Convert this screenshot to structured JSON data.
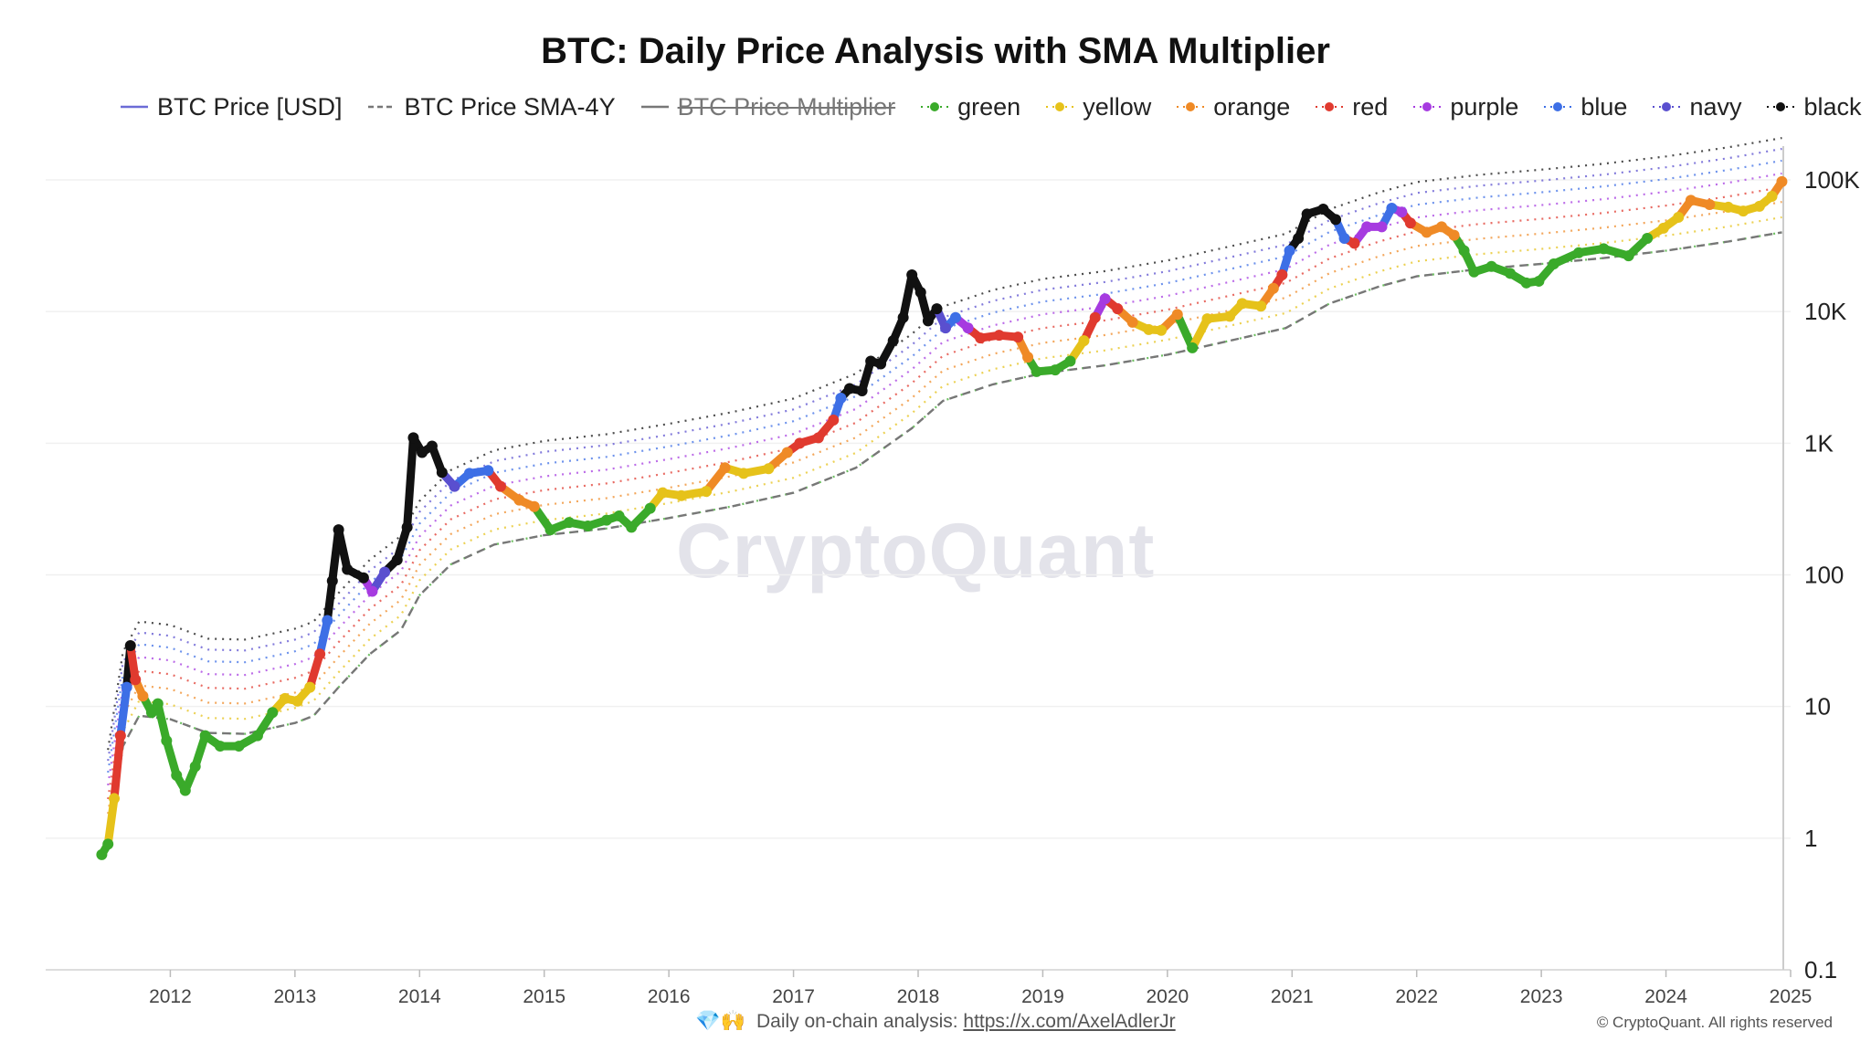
{
  "chart_data": {
    "type": "scatter",
    "title": "BTC: Daily Price Analysis with SMA Multiplier",
    "y_scale": "log",
    "ylim": [
      0.1,
      100000
    ],
    "y_ticks": [
      {
        "value": 0.1,
        "label": "0.1"
      },
      {
        "value": 1,
        "label": "1"
      },
      {
        "value": 10,
        "label": "10"
      },
      {
        "value": 100,
        "label": "100"
      },
      {
        "value": 1000,
        "label": "1K"
      },
      {
        "value": 10000,
        "label": "10K"
      },
      {
        "value": 100000,
        "label": "100K"
      }
    ],
    "x_ticks": [
      "2012",
      "2013",
      "2014",
      "2015",
      "2016",
      "2017",
      "2018",
      "2019",
      "2020",
      "2021",
      "2022",
      "2023",
      "2024",
      "2025"
    ],
    "xlim": [
      2011.0,
      2025.0
    ],
    "legend_position": "top",
    "legend": [
      {
        "label": "BTC Price [USD]",
        "style": "line",
        "color": "#6b6bd6",
        "hidden": false
      },
      {
        "label": "BTC Price SMA-4Y",
        "style": "dashed",
        "color": "#777777",
        "hidden": false
      },
      {
        "label": "BTC Price Multiplier",
        "style": "line",
        "color": "#777777",
        "hidden": true
      },
      {
        "label": "green",
        "style": "marker",
        "color": "#3aaa2a",
        "hidden": false
      },
      {
        "label": "yellow",
        "style": "marker",
        "color": "#e6c21a",
        "hidden": false
      },
      {
        "label": "orange",
        "style": "marker",
        "color": "#ef8a26",
        "hidden": false
      },
      {
        "label": "red",
        "style": "marker",
        "color": "#e03a2f",
        "hidden": false
      },
      {
        "label": "purple",
        "style": "marker",
        "color": "#a63be0",
        "hidden": false
      },
      {
        "label": "blue",
        "style": "marker",
        "color": "#3d6fe6",
        "hidden": false
      },
      {
        "label": "navy",
        "style": "marker",
        "color": "#5a4fcf",
        "hidden": false
      },
      {
        "label": "black",
        "style": "marker",
        "color": "#111111",
        "hidden": false
      }
    ],
    "price_series": [
      {
        "x": 2011.45,
        "y": 0.75,
        "c": "green"
      },
      {
        "x": 2011.5,
        "y": 0.9,
        "c": "green"
      },
      {
        "x": 2011.55,
        "y": 2.0,
        "c": "yellow"
      },
      {
        "x": 2011.6,
        "y": 6.0,
        "c": "red"
      },
      {
        "x": 2011.65,
        "y": 14,
        "c": "blue"
      },
      {
        "x": 2011.68,
        "y": 29,
        "c": "black"
      },
      {
        "x": 2011.72,
        "y": 16,
        "c": "red"
      },
      {
        "x": 2011.78,
        "y": 12,
        "c": "orange"
      },
      {
        "x": 2011.85,
        "y": 9,
        "c": "green"
      },
      {
        "x": 2011.9,
        "y": 10.5,
        "c": "green"
      },
      {
        "x": 2011.97,
        "y": 5.5,
        "c": "green"
      },
      {
        "x": 2012.05,
        "y": 3.0,
        "c": "green"
      },
      {
        "x": 2012.12,
        "y": 2.3,
        "c": "green"
      },
      {
        "x": 2012.2,
        "y": 3.5,
        "c": "green"
      },
      {
        "x": 2012.28,
        "y": 6.0,
        "c": "green"
      },
      {
        "x": 2012.4,
        "y": 5.0,
        "c": "green"
      },
      {
        "x": 2012.55,
        "y": 5.0,
        "c": "green"
      },
      {
        "x": 2012.7,
        "y": 6.0,
        "c": "green"
      },
      {
        "x": 2012.82,
        "y": 9.0,
        "c": "green"
      },
      {
        "x": 2012.92,
        "y": 11.5,
        "c": "yellow"
      },
      {
        "x": 2013.02,
        "y": 11.0,
        "c": "yellow"
      },
      {
        "x": 2013.12,
        "y": 14,
        "c": "yellow"
      },
      {
        "x": 2013.2,
        "y": 25,
        "c": "red"
      },
      {
        "x": 2013.26,
        "y": 45,
        "c": "blue"
      },
      {
        "x": 2013.3,
        "y": 90,
        "c": "black"
      },
      {
        "x": 2013.35,
        "y": 220,
        "c": "black"
      },
      {
        "x": 2013.42,
        "y": 110,
        "c": "black"
      },
      {
        "x": 2013.55,
        "y": 95,
        "c": "black"
      },
      {
        "x": 2013.62,
        "y": 75,
        "c": "purple"
      },
      {
        "x": 2013.72,
        "y": 105,
        "c": "navy"
      },
      {
        "x": 2013.82,
        "y": 130,
        "c": "black"
      },
      {
        "x": 2013.9,
        "y": 230,
        "c": "black"
      },
      {
        "x": 2013.95,
        "y": 1100,
        "c": "black"
      },
      {
        "x": 2014.02,
        "y": 850,
        "c": "black"
      },
      {
        "x": 2014.1,
        "y": 950,
        "c": "black"
      },
      {
        "x": 2014.18,
        "y": 600,
        "c": "black"
      },
      {
        "x": 2014.28,
        "y": 470,
        "c": "navy"
      },
      {
        "x": 2014.4,
        "y": 590,
        "c": "blue"
      },
      {
        "x": 2014.55,
        "y": 620,
        "c": "blue"
      },
      {
        "x": 2014.65,
        "y": 470,
        "c": "red"
      },
      {
        "x": 2014.8,
        "y": 370,
        "c": "orange"
      },
      {
        "x": 2014.92,
        "y": 330,
        "c": "orange"
      },
      {
        "x": 2015.05,
        "y": 220,
        "c": "green"
      },
      {
        "x": 2015.2,
        "y": 250,
        "c": "green"
      },
      {
        "x": 2015.35,
        "y": 235,
        "c": "green"
      },
      {
        "x": 2015.5,
        "y": 260,
        "c": "green"
      },
      {
        "x": 2015.6,
        "y": 280,
        "c": "green"
      },
      {
        "x": 2015.7,
        "y": 230,
        "c": "green"
      },
      {
        "x": 2015.85,
        "y": 320,
        "c": "green"
      },
      {
        "x": 2015.95,
        "y": 420,
        "c": "yellow"
      },
      {
        "x": 2016.1,
        "y": 400,
        "c": "yellow"
      },
      {
        "x": 2016.3,
        "y": 430,
        "c": "yellow"
      },
      {
        "x": 2016.45,
        "y": 650,
        "c": "orange"
      },
      {
        "x": 2016.6,
        "y": 590,
        "c": "yellow"
      },
      {
        "x": 2016.8,
        "y": 640,
        "c": "yellow"
      },
      {
        "x": 2016.95,
        "y": 850,
        "c": "orange"
      },
      {
        "x": 2017.05,
        "y": 1000,
        "c": "red"
      },
      {
        "x": 2017.2,
        "y": 1100,
        "c": "red"
      },
      {
        "x": 2017.32,
        "y": 1500,
        "c": "red"
      },
      {
        "x": 2017.38,
        "y": 2200,
        "c": "blue"
      },
      {
        "x": 2017.45,
        "y": 2600,
        "c": "black"
      },
      {
        "x": 2017.55,
        "y": 2500,
        "c": "black"
      },
      {
        "x": 2017.62,
        "y": 4200,
        "c": "black"
      },
      {
        "x": 2017.7,
        "y": 4000,
        "c": "black"
      },
      {
        "x": 2017.8,
        "y": 6000,
        "c": "black"
      },
      {
        "x": 2017.88,
        "y": 9000,
        "c": "black"
      },
      {
        "x": 2017.95,
        "y": 19000,
        "c": "black"
      },
      {
        "x": 2018.02,
        "y": 14000,
        "c": "black"
      },
      {
        "x": 2018.08,
        "y": 8500,
        "c": "black"
      },
      {
        "x": 2018.15,
        "y": 10500,
        "c": "black"
      },
      {
        "x": 2018.22,
        "y": 7500,
        "c": "navy"
      },
      {
        "x": 2018.3,
        "y": 9000,
        "c": "blue"
      },
      {
        "x": 2018.4,
        "y": 7500,
        "c": "purple"
      },
      {
        "x": 2018.5,
        "y": 6300,
        "c": "red"
      },
      {
        "x": 2018.65,
        "y": 6600,
        "c": "red"
      },
      {
        "x": 2018.8,
        "y": 6400,
        "c": "red"
      },
      {
        "x": 2018.88,
        "y": 4500,
        "c": "orange"
      },
      {
        "x": 2018.95,
        "y": 3500,
        "c": "green"
      },
      {
        "x": 2019.1,
        "y": 3600,
        "c": "green"
      },
      {
        "x": 2019.22,
        "y": 4200,
        "c": "green"
      },
      {
        "x": 2019.33,
        "y": 6000,
        "c": "yellow"
      },
      {
        "x": 2019.42,
        "y": 9000,
        "c": "red"
      },
      {
        "x": 2019.5,
        "y": 12500,
        "c": "purple"
      },
      {
        "x": 2019.6,
        "y": 10500,
        "c": "red"
      },
      {
        "x": 2019.72,
        "y": 8300,
        "c": "orange"
      },
      {
        "x": 2019.85,
        "y": 7300,
        "c": "yellow"
      },
      {
        "x": 2019.95,
        "y": 7200,
        "c": "yellow"
      },
      {
        "x": 2020.08,
        "y": 9500,
        "c": "orange"
      },
      {
        "x": 2020.2,
        "y": 5300,
        "c": "green"
      },
      {
        "x": 2020.32,
        "y": 8800,
        "c": "yellow"
      },
      {
        "x": 2020.5,
        "y": 9200,
        "c": "yellow"
      },
      {
        "x": 2020.6,
        "y": 11500,
        "c": "yellow"
      },
      {
        "x": 2020.75,
        "y": 11000,
        "c": "yellow"
      },
      {
        "x": 2020.85,
        "y": 15000,
        "c": "orange"
      },
      {
        "x": 2020.92,
        "y": 19000,
        "c": "red"
      },
      {
        "x": 2020.98,
        "y": 29000,
        "c": "blue"
      },
      {
        "x": 2021.05,
        "y": 36000,
        "c": "black"
      },
      {
        "x": 2021.12,
        "y": 55000,
        "c": "black"
      },
      {
        "x": 2021.25,
        "y": 60000,
        "c": "black"
      },
      {
        "x": 2021.35,
        "y": 50000,
        "c": "black"
      },
      {
        "x": 2021.42,
        "y": 36000,
        "c": "blue"
      },
      {
        "x": 2021.5,
        "y": 33000,
        "c": "red"
      },
      {
        "x": 2021.6,
        "y": 44000,
        "c": "purple"
      },
      {
        "x": 2021.72,
        "y": 44000,
        "c": "purple"
      },
      {
        "x": 2021.8,
        "y": 61000,
        "c": "blue"
      },
      {
        "x": 2021.88,
        "y": 57000,
        "c": "purple"
      },
      {
        "x": 2021.95,
        "y": 47000,
        "c": "red"
      },
      {
        "x": 2022.08,
        "y": 40000,
        "c": "orange"
      },
      {
        "x": 2022.2,
        "y": 44000,
        "c": "orange"
      },
      {
        "x": 2022.3,
        "y": 38000,
        "c": "orange"
      },
      {
        "x": 2022.38,
        "y": 29000,
        "c": "green"
      },
      {
        "x": 2022.46,
        "y": 20000,
        "c": "green"
      },
      {
        "x": 2022.6,
        "y": 22000,
        "c": "green"
      },
      {
        "x": 2022.75,
        "y": 19500,
        "c": "green"
      },
      {
        "x": 2022.88,
        "y": 16500,
        "c": "green"
      },
      {
        "x": 2022.98,
        "y": 17000,
        "c": "green"
      },
      {
        "x": 2023.1,
        "y": 23000,
        "c": "green"
      },
      {
        "x": 2023.3,
        "y": 28000,
        "c": "green"
      },
      {
        "x": 2023.5,
        "y": 30000,
        "c": "green"
      },
      {
        "x": 2023.7,
        "y": 26500,
        "c": "green"
      },
      {
        "x": 2023.85,
        "y": 36000,
        "c": "green"
      },
      {
        "x": 2023.98,
        "y": 43000,
        "c": "yellow"
      },
      {
        "x": 2024.1,
        "y": 52000,
        "c": "yellow"
      },
      {
        "x": 2024.2,
        "y": 70000,
        "c": "orange"
      },
      {
        "x": 2024.35,
        "y": 65000,
        "c": "orange"
      },
      {
        "x": 2024.5,
        "y": 62000,
        "c": "yellow"
      },
      {
        "x": 2024.62,
        "y": 58000,
        "c": "yellow"
      },
      {
        "x": 2024.75,
        "y": 63000,
        "c": "yellow"
      },
      {
        "x": 2024.85,
        "y": 75000,
        "c": "yellow"
      },
      {
        "x": 2024.93,
        "y": 97000,
        "c": "orange"
      }
    ],
    "sma_series": [
      {
        "x": 2011.5,
        "y": 0.9
      },
      {
        "x": 2011.62,
        "y": 5.0
      },
      {
        "x": 2011.75,
        "y": 8.5
      },
      {
        "x": 2012.0,
        "y": 8.0
      },
      {
        "x": 2012.3,
        "y": 6.3
      },
      {
        "x": 2012.6,
        "y": 6.2
      },
      {
        "x": 2013.0,
        "y": 7.5
      },
      {
        "x": 2013.15,
        "y": 8.5
      },
      {
        "x": 2013.35,
        "y": 14
      },
      {
        "x": 2013.6,
        "y": 25
      },
      {
        "x": 2013.85,
        "y": 38
      },
      {
        "x": 2014.0,
        "y": 70
      },
      {
        "x": 2014.25,
        "y": 120
      },
      {
        "x": 2014.6,
        "y": 170
      },
      {
        "x": 2015.0,
        "y": 200
      },
      {
        "x": 2015.5,
        "y": 225
      },
      {
        "x": 2016.0,
        "y": 270
      },
      {
        "x": 2016.5,
        "y": 330
      },
      {
        "x": 2017.0,
        "y": 420
      },
      {
        "x": 2017.5,
        "y": 650
      },
      {
        "x": 2017.95,
        "y": 1300
      },
      {
        "x": 2018.2,
        "y": 2100
      },
      {
        "x": 2018.6,
        "y": 2800
      },
      {
        "x": 2019.0,
        "y": 3400
      },
      {
        "x": 2019.5,
        "y": 3900
      },
      {
        "x": 2020.0,
        "y": 4700
      },
      {
        "x": 2020.5,
        "y": 6000
      },
      {
        "x": 2020.95,
        "y": 7500
      },
      {
        "x": 2021.3,
        "y": 11500
      },
      {
        "x": 2021.7,
        "y": 15500
      },
      {
        "x": 2022.0,
        "y": 18500
      },
      {
        "x": 2022.5,
        "y": 21000
      },
      {
        "x": 2023.0,
        "y": 23000
      },
      {
        "x": 2023.5,
        "y": 25500
      },
      {
        "x": 2024.0,
        "y": 29000
      },
      {
        "x": 2024.5,
        "y": 34000
      },
      {
        "x": 2024.93,
        "y": 40000
      }
    ],
    "multiplier_colors": {
      "green": "#3aaa2a",
      "yellow": "#e6c21a",
      "orange": "#ef8a26",
      "red": "#e03a2f",
      "purple": "#a63be0",
      "blue": "#3d6fe6",
      "navy": "#5a4fcf",
      "black": "#111111"
    },
    "multiplier_levels": [
      {
        "name": "green",
        "factor": 1.0
      },
      {
        "name": "yellow",
        "factor": 1.3
      },
      {
        "name": "orange",
        "factor": 1.7
      },
      {
        "name": "red",
        "factor": 2.2
      },
      {
        "name": "purple",
        "factor": 2.8
      },
      {
        "name": "blue",
        "factor": 3.5
      },
      {
        "name": "navy",
        "factor": 4.3
      },
      {
        "name": "black",
        "factor": 5.2
      }
    ]
  },
  "watermark": "CryptoQuant",
  "footer": {
    "text": "Daily on-chain analysis: ",
    "link_text": "https://x.com/AxelAdlerJr",
    "icons": "💎🙌"
  },
  "copyright": "© CryptoQuant. All rights reserved"
}
